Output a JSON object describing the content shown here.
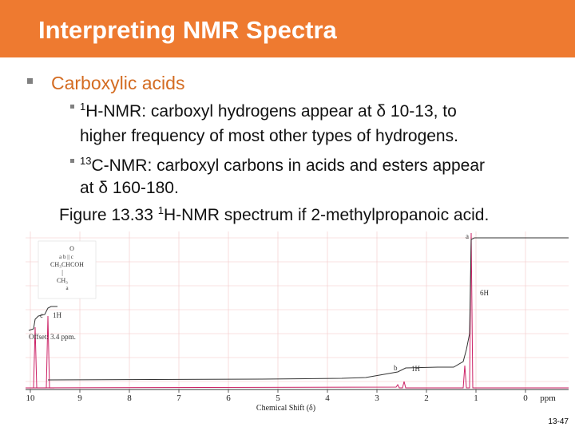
{
  "title": "Interpreting NMR Spectra",
  "bullet": "Carboxylic acids",
  "sub1": {
    "sup": "1",
    "line1": "H-NMR: carboxyl hydrogens appear at δ 10-13, to",
    "line2": "higher frequency of most other types of hydrogens."
  },
  "sub2": {
    "sup": "13",
    "line1": "C-NMR: carboxyl carbons in acids and esters appear",
    "line2": "at δ 160-180."
  },
  "caption": {
    "pre": "Figure 13.33 ",
    "sup": "1",
    "post": "H-NMR spectrum if 2-methylpropanoic acid."
  },
  "spectrum": {
    "ticks": [
      "10",
      "9",
      "8",
      "7",
      "6",
      "5",
      "4",
      "3",
      "2",
      "1",
      "0",
      "ppm"
    ],
    "xlabel": "Chemical Shift (δ)",
    "peak_labels": {
      "a": "a",
      "b": "b",
      "c": "c",
      "6H": "6H",
      "1H_b": "1H",
      "1H_c": "1H"
    },
    "offset": "Offset: 3.4 ppm.",
    "structure": {
      "o": "O",
      "letters": "a  b  ||  c",
      "formula": "CH₃CHCOH",
      "bar": "|",
      "ch3": "CH₃",
      "a2": "a"
    }
  },
  "slide_number": "13-47"
}
